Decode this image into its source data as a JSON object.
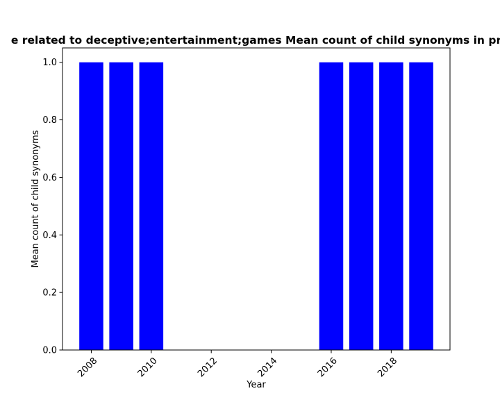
{
  "chart_data": {
    "type": "bar",
    "title": "e related to deceptive;entertainment;games Mean count of child synonyms in pr",
    "xlabel": "Year",
    "ylabel": "Mean count of child synonyms",
    "x": [
      2008,
      2009,
      2010,
      2016,
      2017,
      2018,
      2019
    ],
    "values": [
      1.0,
      1.0,
      1.0,
      1.0,
      1.0,
      1.0,
      1.0
    ],
    "xlim": [
      2007.04,
      2019.96
    ],
    "ylim": [
      0,
      1.05
    ],
    "xticks": [
      2008,
      2010,
      2012,
      2014,
      2016,
      2018
    ],
    "yticks": [
      0.0,
      0.2,
      0.4,
      0.6,
      0.8,
      1.0
    ],
    "ytick_labels": [
      "0.0",
      "0.2",
      "0.4",
      "0.6",
      "0.8",
      "1.0"
    ],
    "bar_color": "#0000ff",
    "grid": false,
    "legend": "none"
  }
}
